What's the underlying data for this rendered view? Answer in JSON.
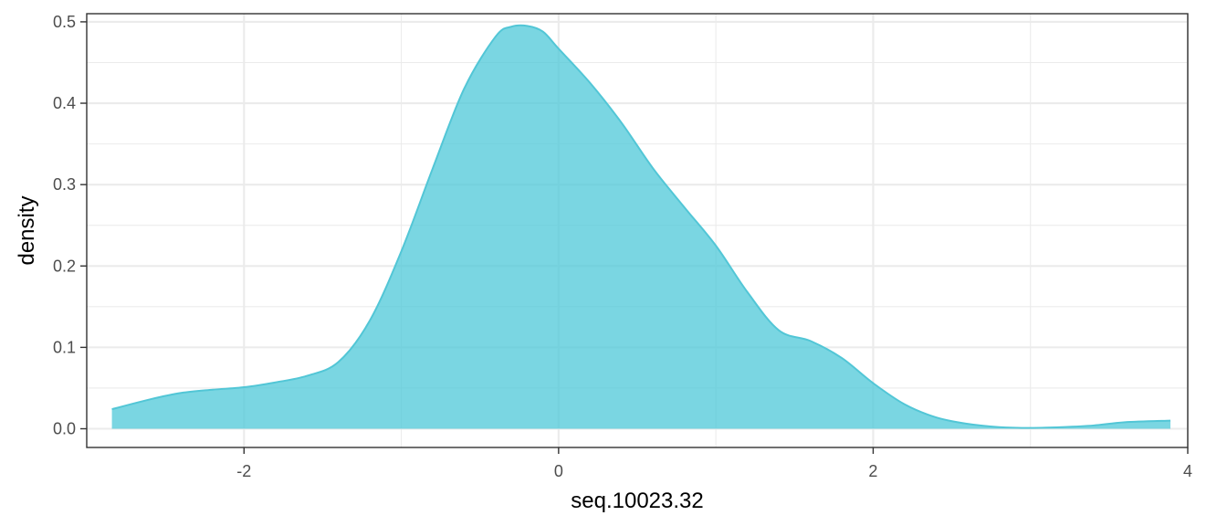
{
  "chart_data": {
    "type": "area",
    "title": "",
    "xlabel": "seq.10023.32",
    "ylabel": "density",
    "xlim": [
      -3.0,
      4.0
    ],
    "ylim": [
      -0.023,
      0.51
    ],
    "x_ticks": [
      -2,
      0,
      2,
      4
    ],
    "x_tick_labels": [
      "-2",
      "0",
      "2",
      "4"
    ],
    "y_ticks": [
      0.0,
      0.1,
      0.2,
      0.3,
      0.4,
      0.5
    ],
    "y_tick_labels": [
      "0.0",
      "0.1",
      "0.2",
      "0.3",
      "0.4",
      "0.5"
    ],
    "grid": true,
    "legend": "none",
    "series": [
      {
        "fill": "#4dc8d8",
        "fill_opacity": 0.75,
        "stroke": "#52c6d6",
        "x": [
          -2.84,
          -2.6,
          -2.4,
          -2.2,
          -2.0,
          -1.8,
          -1.6,
          -1.4,
          -1.2,
          -1.0,
          -0.8,
          -0.6,
          -0.4,
          -0.3,
          -0.2,
          -0.1,
          0.0,
          0.2,
          0.4,
          0.6,
          0.8,
          1.0,
          1.2,
          1.4,
          1.6,
          1.8,
          2.0,
          2.2,
          2.4,
          2.6,
          2.8,
          3.0,
          3.2,
          3.4,
          3.6,
          3.89
        ],
        "y": [
          0.024,
          0.036,
          0.044,
          0.048,
          0.051,
          0.057,
          0.065,
          0.082,
          0.133,
          0.218,
          0.32,
          0.418,
          0.482,
          0.494,
          0.495,
          0.488,
          0.467,
          0.425,
          0.376,
          0.32,
          0.272,
          0.225,
          0.168,
          0.121,
          0.108,
          0.087,
          0.056,
          0.03,
          0.014,
          0.006,
          0.002,
          0.001,
          0.002,
          0.004,
          0.008,
          0.01
        ]
      }
    ]
  }
}
